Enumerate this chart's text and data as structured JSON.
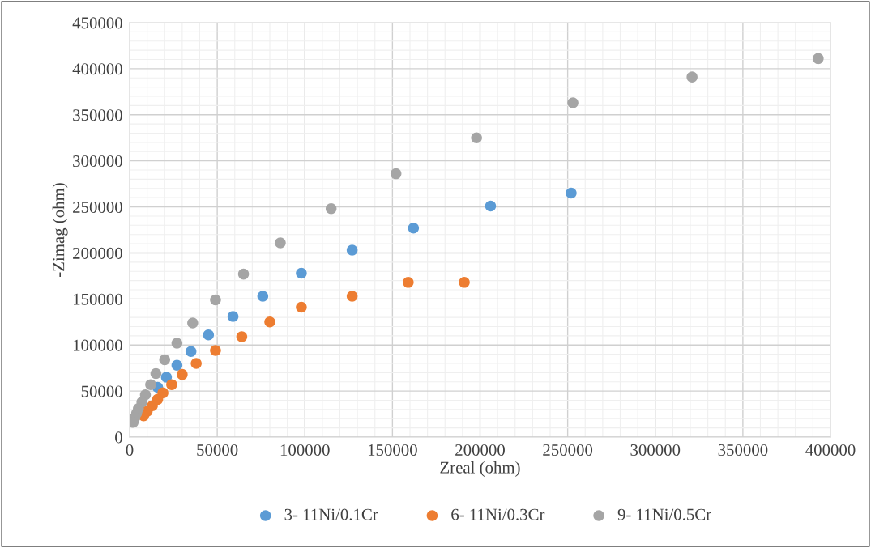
{
  "chart_data": {
    "type": "scatter",
    "xlabel": "Zreal (ohm)",
    "ylabel": "-Zimag (ohm)",
    "xlim": [
      0,
      400000
    ],
    "xticks": [
      0,
      50000,
      100000,
      150000,
      200000,
      250000,
      300000,
      350000,
      400000
    ],
    "ylim": [
      0,
      450000
    ],
    "yticks": [
      0,
      50000,
      100000,
      150000,
      200000,
      250000,
      300000,
      350000,
      400000,
      450000
    ],
    "grid": true,
    "legend": "bottom",
    "marker": "circle",
    "series": [
      {
        "name": "3- 11Ni/0.1Cr",
        "color": "#5b9bd5",
        "x": [
          252000,
          206000,
          162000,
          127000,
          98000,
          76000,
          59000,
          45000,
          35000,
          27000,
          21000,
          16000
        ],
        "values": [
          265000,
          251000,
          227000,
          203000,
          178000,
          153000,
          131000,
          111000,
          93000,
          78000,
          65000,
          54000
        ]
      },
      {
        "name": "6- 11Ni/0.3Cr",
        "color": "#ed7d31",
        "x": [
          191000,
          159000,
          127000,
          98000,
          80000,
          64000,
          49000,
          38000,
          30000,
          24000,
          19000,
          16000,
          13000,
          10000,
          8000
        ],
        "values": [
          168000,
          168000,
          153000,
          141000,
          125000,
          109000,
          94000,
          80000,
          68000,
          57000,
          48000,
          41000,
          34000,
          28000,
          23000
        ]
      },
      {
        "name": "9- 11Ni/0.5Cr",
        "color": "#a5a5a5",
        "x": [
          393000,
          321000,
          253000,
          198000,
          152000,
          115000,
          86000,
          65000,
          49000,
          36000,
          27000,
          20000,
          15000,
          12000,
          9000,
          7000,
          5000,
          4000,
          3000,
          2000
        ],
        "values": [
          411000,
          391000,
          363000,
          325000,
          286000,
          248000,
          211000,
          177000,
          149000,
          124000,
          102000,
          84000,
          69000,
          57000,
          46000,
          38000,
          31000,
          26000,
          21000,
          16000
        ]
      }
    ]
  }
}
